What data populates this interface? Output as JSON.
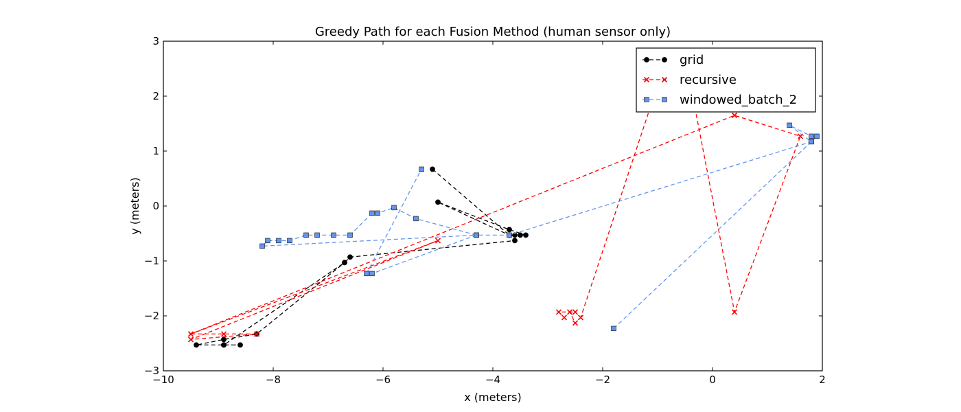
{
  "chart_data": {
    "type": "line",
    "title": "Greedy Path for each Fusion Method (human sensor only)",
    "xlabel": "x (meters)",
    "ylabel": "y (meters)",
    "xlim": [
      -10,
      2
    ],
    "ylim": [
      -3,
      3
    ],
    "xticks": [
      -10,
      -8,
      -6,
      -4,
      -2,
      0,
      2
    ],
    "yticks": [
      -3,
      -2,
      -1,
      0,
      1,
      2,
      3
    ],
    "xtick_labels": [
      "−10",
      "−8",
      "−6",
      "−4",
      "−2",
      "0",
      "2"
    ],
    "ytick_labels": [
      "−3",
      "−2",
      "−1",
      "0",
      "1",
      "2",
      "3"
    ],
    "grid": false,
    "legend_position": "top-right",
    "series": [
      {
        "name": "grid",
        "color": "#000000",
        "marker": "circle",
        "linestyle": "dashed",
        "points": [
          [
            -5.1,
            0.67
          ],
          [
            -3.7,
            -0.53
          ],
          [
            -3.6,
            -0.53
          ],
          [
            -3.5,
            -0.53
          ],
          [
            -3.4,
            -0.53
          ],
          [
            -3.7,
            -0.43
          ],
          [
            -5.0,
            0.07
          ],
          [
            -3.7,
            -0.53
          ],
          [
            -3.6,
            -0.63
          ],
          [
            -6.6,
            -0.93
          ],
          [
            -6.7,
            -1.03
          ],
          [
            -8.9,
            -2.53
          ],
          [
            -8.6,
            -2.53
          ],
          [
            -8.9,
            -2.53
          ],
          [
            -9.4,
            -2.53
          ],
          [
            -8.9,
            -2.43
          ],
          [
            -8.3,
            -2.33
          ],
          [
            -6.7,
            -1.03
          ]
        ]
      },
      {
        "name": "recursive",
        "color": "#ff0000",
        "marker": "x",
        "linestyle": "dashed",
        "points": [
          [
            -9.5,
            -2.33
          ],
          [
            -8.9,
            -2.33
          ],
          [
            -8.3,
            -2.33
          ],
          [
            -9.5,
            -2.43
          ],
          [
            -5.0,
            -0.63
          ],
          [
            -9.5,
            -2.33
          ],
          [
            0.4,
            1.65
          ],
          [
            1.6,
            1.27
          ],
          [
            0.4,
            -1.93
          ],
          [
            -0.4,
            2.2
          ],
          [
            -1.0,
            2.2
          ],
          [
            -2.4,
            -2.03
          ],
          [
            -2.5,
            -2.13
          ],
          [
            -2.6,
            -1.93
          ],
          [
            -2.7,
            -2.03
          ],
          [
            -2.8,
            -1.93
          ],
          [
            -2.5,
            -1.93
          ]
        ]
      },
      {
        "name": "windowed_batch_2",
        "color": "#6495ed",
        "marker": "square",
        "linestyle": "dashed",
        "points": [
          [
            -1.8,
            -2.23
          ],
          [
            1.8,
            1.17
          ],
          [
            1.4,
            1.47
          ],
          [
            1.8,
            1.27
          ],
          [
            1.9,
            1.27
          ],
          [
            1.8,
            1.17
          ],
          [
            -3.7,
            -0.53
          ],
          [
            -4.3,
            -0.53
          ],
          [
            -5.4,
            -0.23
          ],
          [
            -5.8,
            -0.03
          ],
          [
            -6.1,
            -0.13
          ],
          [
            -6.2,
            -0.13
          ],
          [
            -6.6,
            -0.53
          ],
          [
            -6.9,
            -0.53
          ],
          [
            -7.2,
            -0.53
          ],
          [
            -7.4,
            -0.53
          ],
          [
            -7.7,
            -0.63
          ],
          [
            -7.9,
            -0.63
          ],
          [
            -8.1,
            -0.63
          ],
          [
            -8.2,
            -0.73
          ],
          [
            -4.3,
            -0.53
          ],
          [
            -6.2,
            -1.23
          ],
          [
            -6.3,
            -1.23
          ],
          [
            -5.3,
            0.67
          ]
        ]
      }
    ]
  }
}
